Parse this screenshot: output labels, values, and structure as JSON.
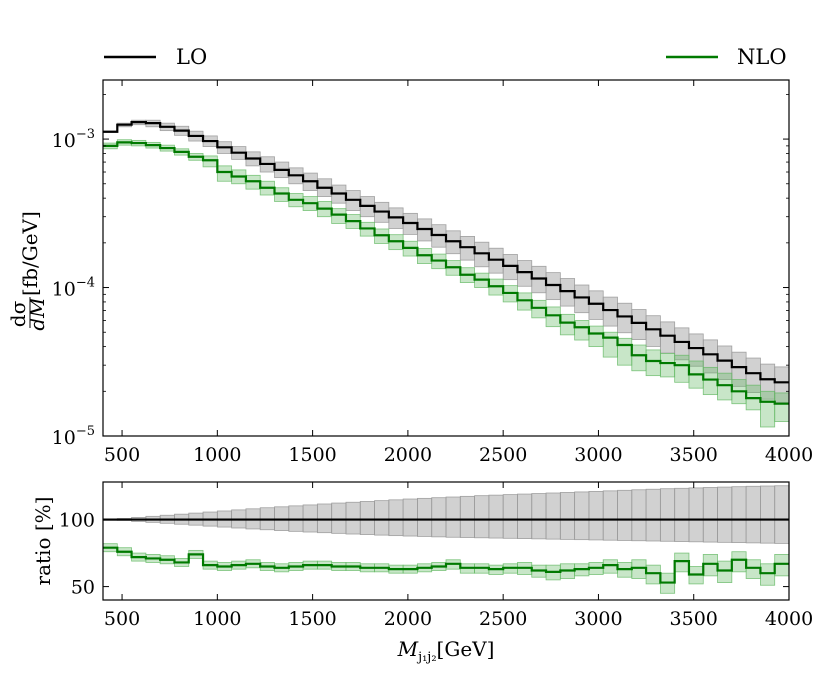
{
  "legend": {
    "lo_label": "LO",
    "nlo_label": "NLO"
  },
  "colors": {
    "lo": "#000000",
    "lo_band": "#999999",
    "nlo": "#007a00",
    "nlo_band": "#62b862"
  },
  "chart_data": [
    {
      "type": "line",
      "panel": "main",
      "title": "",
      "xlabel": "",
      "ylabel_text": "[fb/GeV]",
      "ylabel_frac_num": "dσ",
      "ylabel_frac_den": "dM",
      "yscale": "log",
      "xlim": [
        400,
        4000
      ],
      "ylim": [
        1e-05,
        0.0025
      ],
      "x_ticks": [
        500,
        1000,
        1500,
        2000,
        2500,
        3000,
        3500,
        4000
      ],
      "x_tick_labels": [
        "500",
        "1000",
        "1500",
        "2000",
        "2500",
        "3000",
        "3500",
        "4000"
      ],
      "y_ticks": [
        {
          "value": 0.001,
          "base": "10",
          "exp": "−3"
        },
        {
          "value": 0.0001,
          "base": "10",
          "exp": "−4"
        },
        {
          "value": 1e-05,
          "base": "10",
          "exp": "−5"
        }
      ],
      "bin_edges": [
        400,
        475,
        550,
        625,
        700,
        775,
        850,
        925,
        1000,
        1075,
        1150,
        1225,
        1300,
        1375,
        1450,
        1525,
        1600,
        1675,
        1750,
        1825,
        1900,
        1975,
        2050,
        2125,
        2200,
        2275,
        2350,
        2425,
        2500,
        2575,
        2650,
        2725,
        2800,
        2875,
        2950,
        3025,
        3100,
        3175,
        3250,
        3325,
        3400,
        3475,
        3550,
        3625,
        3700,
        3775,
        3850,
        3925,
        4000
      ],
      "series": [
        {
          "name": "LO",
          "values": [
            0.00112,
            0.00125,
            0.0013,
            0.00128,
            0.00121,
            0.00114,
            0.00105,
            0.00097,
            0.00088,
            0.00081,
            0.00074,
            0.00068,
            0.00062,
            0.00057,
            0.00052,
            0.00047,
            0.00043,
            0.00039,
            0.000355,
            0.000325,
            0.000297,
            0.000272,
            0.000248,
            0.000226,
            0.000205,
            0.000187,
            0.00017,
            0.000154,
            0.00014,
            0.000127,
            0.000115,
            0.000104,
            9.46e-05,
            8.58e-05,
            7.78e-05,
            7.05e-05,
            6.39e-05,
            5.78e-05,
            5.23e-05,
            4.74e-05,
            4.3e-05,
            3.91e-05,
            3.55e-05,
            3.22e-05,
            2.91e-05,
            2.65e-05,
            2.41e-05,
            2.3e-05
          ],
          "band_low": [
            0.00111,
            0.00121,
            0.00125,
            0.00121,
            0.00114,
            0.00106,
            0.00097,
            0.00089,
            0.0008,
            0.00073,
            0.00066,
            0.0006,
            0.00055,
            0.0005,
            0.00045,
            0.00041,
            0.00037,
            0.00033,
            0.0003,
            0.000275,
            0.00025,
            0.000228,
            0.000206,
            0.000187,
            0.000169,
            0.000153,
            0.000138,
            0.000125,
            0.000113,
            0.000102,
            9.22e-05,
            8.29e-05,
            7.5e-05,
            6.77e-05,
            6.1e-05,
            5.5e-05,
            4.96e-05,
            4.46e-05,
            4.01e-05,
            3.62e-05,
            3.26e-05,
            2.95e-05,
            2.66e-05,
            2.4e-05,
            2.16e-05,
            1.96e-05,
            1.77e-05,
            1.68e-05
          ],
          "band_high": [
            0.00113,
            0.00128,
            0.00134,
            0.00134,
            0.00128,
            0.00122,
            0.00113,
            0.00105,
            0.00096,
            0.00089,
            0.00082,
            0.00076,
            0.0007,
            0.00064,
            0.00059,
            0.00054,
            0.00049,
            0.00045,
            0.00041,
            0.000375,
            0.000344,
            0.000316,
            0.00029,
            0.000265,
            0.000241,
            0.000221,
            0.000202,
            0.000184,
            0.000167,
            0.000152,
            0.000139,
            0.000126,
            0.000115,
            0.000104,
            9.5e-05,
            8.62e-05,
            7.84e-05,
            7.11e-05,
            6.46e-05,
            5.87e-05,
            5.35e-05,
            4.87e-05,
            4.44e-05,
            4.04e-05,
            3.67e-05,
            3.35e-05,
            3.05e-05,
            2.92e-05
          ]
        },
        {
          "name": "NLO",
          "values": [
            0.0009,
            0.00095,
            0.00094,
            0.00091,
            0.00087,
            0.00082,
            0.00076,
            0.00072,
            0.0006,
            0.00056,
            0.00052,
            0.00047,
            0.00043,
            0.00039,
            0.00037,
            0.00034,
            0.00031,
            0.00028,
            0.00025,
            0.000225,
            0.000205,
            0.000185,
            0.000165,
            0.000152,
            0.000137,
            0.000122,
            0.000113,
            0.000102,
            9.2e-05,
            8.2e-05,
            7.3e-05,
            6.5e-05,
            5.8e-05,
            5.4e-05,
            4.9e-05,
            4.6e-05,
            4.1e-05,
            3.5e-05,
            3.2e-05,
            3.1e-05,
            3e-05,
            2.6e-05,
            2.4e-05,
            2.2e-05,
            2e-05,
            1.8e-05,
            1.7e-05,
            1.65e-05
          ],
          "band_low": [
            0.00086,
            0.00091,
            0.0009,
            0.00087,
            0.00083,
            0.00078,
            0.00072,
            0.00065,
            0.00052,
            0.0005,
            0.00046,
            0.00042,
            0.00038,
            0.00035,
            0.00033,
            0.0003,
            0.00027,
            0.00025,
            0.000222,
            0.000198,
            0.00018,
            0.000163,
            0.000145,
            0.000134,
            0.000121,
            0.000108,
            0.0001,
            8.9e-05,
            8e-05,
            7.05e-05,
            6.25e-05,
            5.45e-05,
            4.8e-05,
            4.43e-05,
            4e-05,
            3.4e-05,
            3e-05,
            2.75e-05,
            2.55e-05,
            2.5e-05,
            2.3e-05,
            2.1e-05,
            1.9e-05,
            1.75e-05,
            1.65e-05,
            1.5e-05,
            1.15e-05,
            1.25e-05
          ],
          "band_high": [
            0.00094,
            0.00099,
            0.00098,
            0.00095,
            0.00091,
            0.00086,
            0.0008,
            0.00077,
            0.00066,
            0.00062,
            0.00057,
            0.00052,
            0.00047,
            0.00043,
            0.00041,
            0.00038,
            0.00034,
            0.00031,
            0.000275,
            0.000248,
            0.000227,
            0.000205,
            0.000183,
            0.000168,
            0.000152,
            0.000136,
            0.000125,
            0.000114,
            0.000103,
            9.2e-05,
            8.2e-05,
            7.4e-05,
            6.6e-05,
            6e-05,
            5.5e-05,
            5e-05,
            4.55e-05,
            4.1e-05,
            3.8e-05,
            3.6e-05,
            3.5e-05,
            3.2e-05,
            2.9e-05,
            2.65e-05,
            2.4e-05,
            2.2e-05,
            2e-05,
            1.95e-05
          ]
        }
      ]
    },
    {
      "type": "line",
      "panel": "ratio",
      "xlabel_base": "M",
      "xlabel_sub": "j₁j₂",
      "xlabel_unit": "[GeV]",
      "ylabel": "ratio [%]",
      "xlim": [
        400,
        4000
      ],
      "ylim": [
        40,
        128
      ],
      "x_ticks": [
        500,
        1000,
        1500,
        2000,
        2500,
        3000,
        3500,
        4000
      ],
      "x_tick_labels": [
        "500",
        "1000",
        "1500",
        "2000",
        "2500",
        "3000",
        "3500",
        "4000"
      ],
      "y_ticks": [
        50,
        100
      ],
      "y_tick_labels": [
        "50",
        "100"
      ],
      "bin_edges": [
        400,
        475,
        550,
        625,
        700,
        775,
        850,
        925,
        1000,
        1075,
        1150,
        1225,
        1300,
        1375,
        1450,
        1525,
        1600,
        1675,
        1750,
        1825,
        1900,
        1975,
        2050,
        2125,
        2200,
        2275,
        2350,
        2425,
        2500,
        2575,
        2650,
        2725,
        2800,
        2875,
        2950,
        3025,
        3100,
        3175,
        3250,
        3325,
        3400,
        3475,
        3550,
        3625,
        3700,
        3775,
        3850,
        3925,
        4000
      ],
      "series": [
        {
          "name": "LO",
          "values": [
            100,
            100,
            100,
            100,
            100,
            100,
            100,
            100,
            100,
            100,
            100,
            100,
            100,
            100,
            100,
            100,
            100,
            100,
            100,
            100,
            100,
            100,
            100,
            100,
            100,
            100,
            100,
            100,
            100,
            100,
            100,
            100,
            100,
            100,
            100,
            100,
            100,
            100,
            100,
            100,
            100,
            100,
            100,
            100,
            100,
            100,
            100,
            100
          ],
          "band_low": [
            100,
            99.3,
            98.6,
            97.9,
            97.2,
            96.5,
            95.8,
            95.1,
            94.4,
            93.7,
            93.0,
            92.4,
            91.8,
            91.2,
            90.7,
            90.2,
            89.7,
            89.2,
            88.8,
            88.4,
            88.0,
            87.7,
            87.4,
            87.1,
            86.8,
            86.6,
            86.4,
            86.2,
            86.0,
            85.8,
            85.6,
            85.4,
            85.2,
            85.0,
            84.8,
            84.6,
            84.4,
            84.2,
            84.0,
            83.8,
            83.6,
            83.4,
            83.2,
            83.0,
            82.8,
            82.6,
            82.4,
            82.2
          ],
          "band_high": [
            100,
            100.8,
            101.6,
            102.4,
            103.2,
            104.0,
            104.8,
            105.6,
            106.4,
            107.2,
            108.0,
            108.8,
            109.5,
            110.2,
            110.9,
            111.6,
            112.3,
            112.9,
            113.5,
            114.1,
            114.7,
            115.3,
            115.8,
            116.3,
            116.8,
            117.3,
            117.8,
            118.2,
            118.6,
            119.0,
            119.4,
            119.8,
            120.2,
            120.6,
            121.0,
            121.4,
            121.8,
            122.2,
            122.6,
            123.0,
            123.3,
            123.6,
            123.9,
            124.2,
            124.5,
            124.8,
            125.0,
            125.2
          ]
        },
        {
          "name": "NLO",
          "values": [
            79,
            76,
            72,
            71,
            70,
            68,
            74,
            66,
            65,
            66,
            67,
            65,
            64,
            65,
            66,
            66,
            65,
            65,
            64,
            64,
            63,
            63,
            64,
            65,
            67,
            64,
            64,
            63,
            64,
            64,
            62,
            61,
            62,
            63,
            64,
            66,
            63,
            64,
            60,
            53,
            69,
            59,
            67,
            62,
            70,
            64,
            60,
            67
          ],
          "band_low": [
            76,
            73,
            69,
            68,
            67,
            65,
            71,
            63,
            62,
            63,
            64,
            62,
            61,
            62,
            63,
            63,
            62,
            62,
            61,
            61,
            60,
            60,
            61,
            62,
            63,
            60,
            60,
            59,
            60,
            59,
            57,
            55,
            56,
            58,
            59,
            60,
            57,
            56,
            52,
            45,
            61,
            52,
            58,
            53,
            61,
            56,
            51,
            58
          ],
          "band_high": [
            82,
            79,
            75,
            74,
            73,
            71,
            77,
            69,
            68,
            69,
            70,
            68,
            67,
            68,
            69,
            69,
            68,
            68,
            67,
            67,
            66,
            66,
            67,
            68,
            70,
            67,
            67,
            66,
            67,
            68,
            66,
            66,
            67,
            67,
            68,
            70,
            68,
            70,
            66,
            60,
            75,
            65,
            74,
            69,
            76,
            70,
            67,
            74
          ]
        }
      ]
    }
  ]
}
